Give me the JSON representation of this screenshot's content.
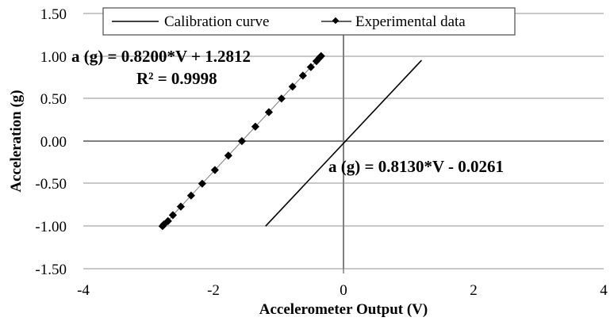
{
  "chart_data": {
    "type": "scatter",
    "title": "",
    "xlabel": "Accelerometer Output (V)",
    "ylabel": "Acceleration (g)",
    "xlim": [
      -4,
      4
    ],
    "ylim": [
      -1.5,
      1.5
    ],
    "x_ticks": [
      "-4",
      "-2",
      "0",
      "2",
      "4"
    ],
    "y_ticks": [
      "1.50",
      "1.00",
      "0.50",
      "0.00",
      "-0.50",
      "-1.00",
      "-1.50"
    ],
    "grid": "horizontal",
    "legend_position": "top",
    "legend": [
      "Calibration curve",
      "Experimental data"
    ],
    "series": [
      {
        "name": "Calibration curve",
        "style": "line",
        "color": "#000000",
        "x": [
          -1.198,
          1.2
        ],
        "y": [
          -1.0,
          0.95
        ]
      },
      {
        "name": "Experimental data",
        "style": "line-diamond-markers",
        "color": "#000000",
        "x": [
          -2.782,
          -2.762,
          -2.698,
          -2.623,
          -2.501,
          -2.343,
          -2.172,
          -1.977,
          -1.77,
          -1.562,
          -1.355,
          -1.147,
          -0.953,
          -0.783,
          -0.624,
          -0.502,
          -0.416,
          -0.368,
          -0.344
        ],
        "y": [
          -1.0,
          -0.98,
          -0.94,
          -0.87,
          -0.77,
          -0.64,
          -0.5,
          -0.34,
          -0.17,
          0.0,
          0.17,
          0.34,
          0.5,
          0.64,
          0.77,
          0.87,
          0.94,
          0.98,
          1.0
        ]
      }
    ],
    "annotations": [
      {
        "text": "a (g) = 0.8200*V + 1.2812",
        "series": "Experimental data"
      },
      {
        "text": "R² = 0.9998",
        "series": "Experimental data"
      },
      {
        "text": "a (g) = 0.8130*V - 0.0261",
        "series": "Calibration curve"
      }
    ]
  },
  "labels": {
    "xlabel": "Accelerometer Output (V)",
    "ylabel": "Acceleration (g)",
    "legend_calibration": "Calibration curve",
    "legend_experimental": "Experimental data",
    "eq_experimental": "a (g) = 0.8200*V + 1.2812",
    "r2_experimental": "R² = 0.9998",
    "eq_calibration": "a (g) = 0.8130*V - 0.0261",
    "y_ticks": [
      "1.50",
      "1.00",
      "0.50",
      "0.00",
      "-0.50",
      "-1.00",
      "-1.50"
    ],
    "x_ticks": [
      "-4",
      "-2",
      "0",
      "2",
      "4"
    ]
  },
  "colors": {
    "gridline": "#a6a6a6",
    "zero_axis": "#808080",
    "series": "#000000",
    "background": "#ffffff"
  }
}
